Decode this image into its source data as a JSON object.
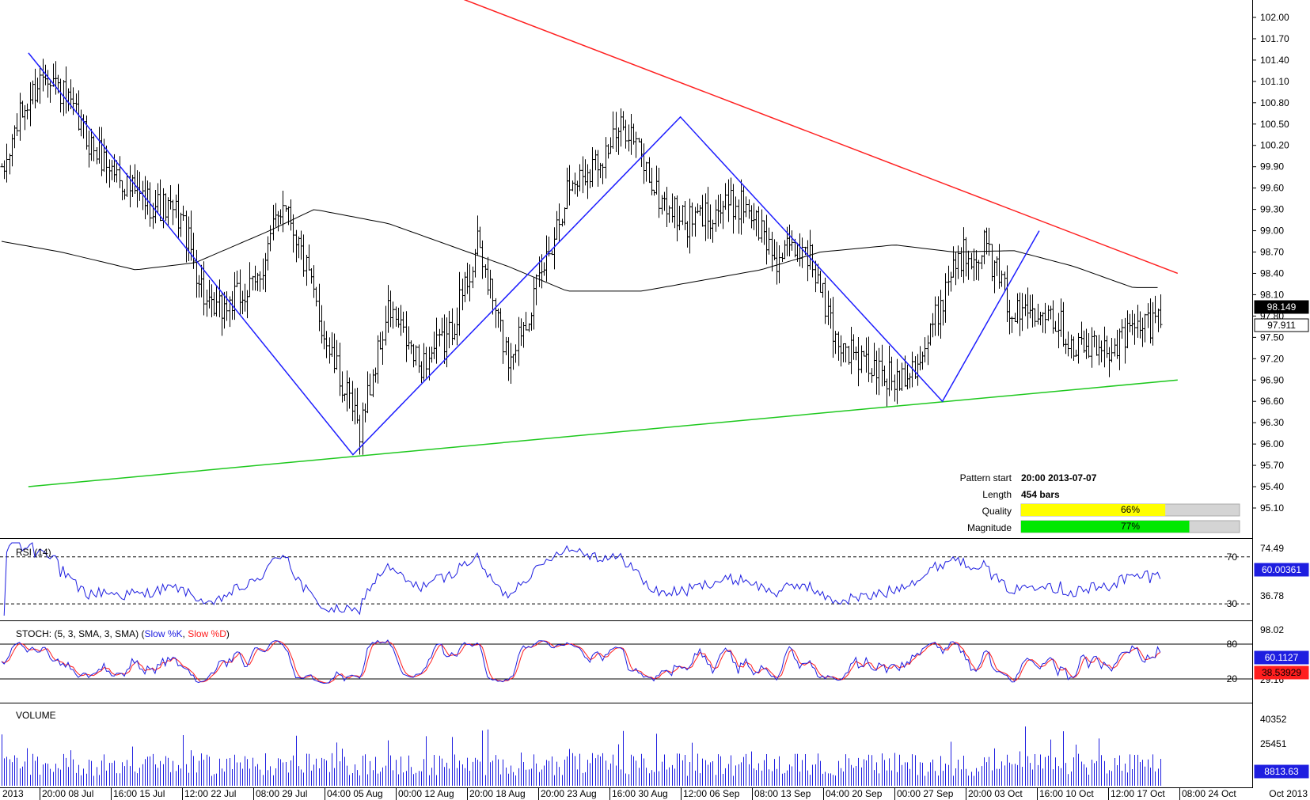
{
  "colors": {
    "resistance": "#ff2020",
    "support": "#1ec81e",
    "zigzag": "#1e1eff",
    "ma": "#000000",
    "rsi": "#1e1ee0",
    "stoch_k": "#1e1ee0",
    "stoch_d": "#ff1e1e",
    "volume": "#1e1ee0",
    "quality_fill": "#ffff00",
    "magnitude_fill": "#00e800"
  },
  "chart_data": [
    {
      "type": "line",
      "panel": "price",
      "y_ticks": [
        "102.00",
        "101.70",
        "101.40",
        "101.10",
        "100.80",
        "100.50",
        "100.20",
        "99.90",
        "99.60",
        "99.30",
        "99.00",
        "98.70",
        "98.40",
        "98.10",
        "97.80",
        "97.50",
        "97.20",
        "96.90",
        "96.60",
        "96.30",
        "96.00",
        "95.70",
        "95.40",
        "95.10"
      ],
      "ylim": [
        95.05,
        102.2
      ],
      "x_tick_labels": [
        "2013",
        "20:00 08 Jul",
        "16:00 15 Jul",
        "12:00 22 Jul",
        "08:00 29 Jul",
        "04:00 05 Aug",
        "00:00 12 Aug",
        "20:00 18 Aug",
        "20:00 23 Aug",
        "16:00 30 Aug",
        "12:00 06 Sep",
        "08:00 13 Sep",
        "04:00 20 Sep",
        "00:00 27 Sep",
        "20:00 03 Oct",
        "16:00 10 Oct",
        "12:00 17 Oct",
        "08:00 24 Oct",
        "Oct 2013"
      ],
      "bar_count": 454,
      "close_anchors": [
        [
          0,
          99.7
        ],
        [
          10,
          100.5
        ],
        [
          30,
          101.3
        ],
        [
          60,
          100.2
        ],
        [
          90,
          99.5
        ],
        [
          120,
          99.2
        ],
        [
          140,
          97.8
        ],
        [
          170,
          98.2
        ],
        [
          190,
          99.5
        ],
        [
          220,
          97.3
        ],
        [
          240,
          96.2
        ],
        [
          260,
          97.9
        ],
        [
          280,
          97.1
        ],
        [
          300,
          97.5
        ],
        [
          320,
          98.8
        ],
        [
          340,
          97.2
        ],
        [
          360,
          98.2
        ],
        [
          380,
          99.6
        ],
        [
          400,
          100.0
        ],
        [
          420,
          100.5
        ],
        [
          440,
          99.5
        ],
        [
          460,
          99.1
        ],
        [
          480,
          99.3
        ],
        [
          500,
          99.4
        ],
        [
          520,
          98.6
        ],
        [
          540,
          98.8
        ],
        [
          560,
          97.5
        ],
        [
          580,
          97.1
        ],
        [
          600,
          96.9
        ],
        [
          620,
          97.3
        ],
        [
          640,
          98.6
        ],
        [
          660,
          98.8
        ],
        [
          680,
          97.8
        ],
        [
          700,
          98.0
        ],
        [
          720,
          97.4
        ],
        [
          740,
          97.3
        ],
        [
          760,
          97.6
        ],
        [
          780,
          97.8
        ]
      ],
      "ma_anchors": [
        [
          0,
          98.85
        ],
        [
          40,
          98.7
        ],
        [
          90,
          98.45
        ],
        [
          130,
          98.55
        ],
        [
          180,
          99.0
        ],
        [
          210,
          99.3
        ],
        [
          260,
          99.1
        ],
        [
          300,
          98.8
        ],
        [
          340,
          98.5
        ],
        [
          380,
          98.15
        ],
        [
          430,
          98.15
        ],
        [
          470,
          98.3
        ],
        [
          510,
          98.45
        ],
        [
          550,
          98.7
        ],
        [
          600,
          98.8
        ],
        [
          640,
          98.7
        ],
        [
          680,
          98.72
        ],
        [
          720,
          98.5
        ],
        [
          760,
          98.2
        ]
      ],
      "resistance_line": {
        "from": [
          205,
          103.1
        ],
        "to": [
          790,
          98.4
        ]
      },
      "support_line": {
        "from": [
          18,
          95.4
        ],
        "to": [
          790,
          96.9
        ]
      },
      "pattern_points": [
        [
          18,
          101.5
        ],
        [
          236,
          95.85
        ],
        [
          456,
          100.6
        ],
        [
          632,
          96.6
        ],
        [
          697,
          99.0
        ]
      ],
      "last_close_label": "97.911",
      "ma_label": "98.149"
    },
    {
      "type": "line",
      "panel": "rsi",
      "title": "RSI (14)",
      "y_ticks": [
        "74.49",
        "55.63",
        "36.78"
      ],
      "levels": [
        "70",
        "30"
      ],
      "ylim": [
        20,
        82
      ],
      "value_label": "60.00361"
    },
    {
      "type": "line",
      "panel": "stoch",
      "title_prefix": "STOCH: (5, 3, SMA, 3, SMA) (",
      "series": [
        {
          "name": "Slow %K"
        },
        {
          "name": "Slow %D"
        }
      ],
      "y_ticks": [
        "98.02",
        "29.16"
      ],
      "levels": [
        "80",
        "20"
      ],
      "ylim": [
        -10,
        110
      ],
      "k_label": "60.1127",
      "d_label": "38.53929"
    },
    {
      "type": "bar",
      "panel": "volume",
      "title": "VOLUME",
      "y_ticks": [
        "40352",
        "25451"
      ],
      "ylim": [
        0,
        47000
      ],
      "value_label": "8813.63"
    }
  ],
  "pattern_info": {
    "start_label": "Pattern start",
    "start_value": "20:00 2013-07-07",
    "length_label": "Length",
    "length_value": "454 bars",
    "quality_label": "Quality",
    "quality_value": "66%",
    "quality_fraction": 0.66,
    "magnitude_label": "Magnitude",
    "magnitude_value": "77%",
    "magnitude_fraction": 0.77
  }
}
